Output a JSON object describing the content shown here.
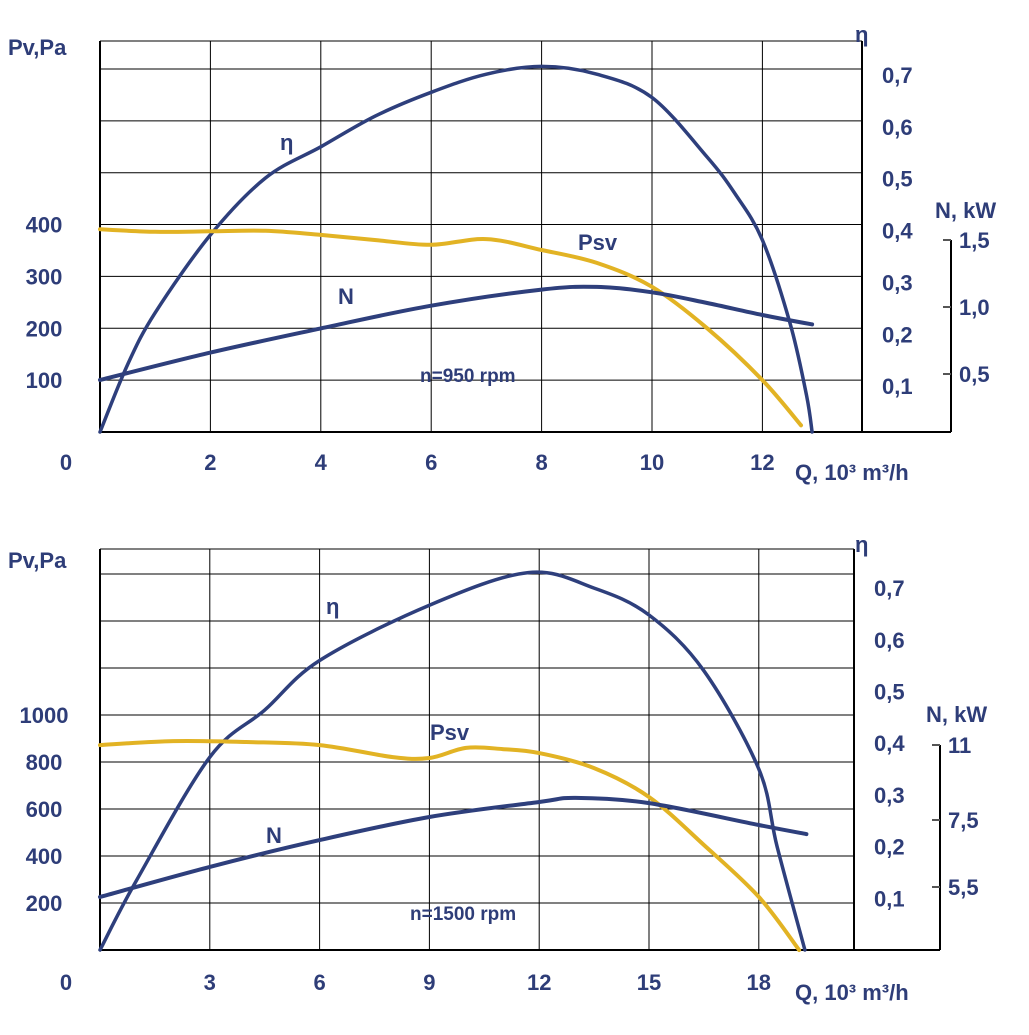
{
  "colors": {
    "navy": "#2e3f7c",
    "yellow": "#e2b324",
    "text": "#2e3d78",
    "grid": "#000000"
  },
  "chart_data": [
    {
      "type": "line",
      "annotation": "n=950 rpm",
      "xlabel": "Q, 10³ m³/h",
      "grid": true,
      "x_ticks": [
        {
          "value": 0,
          "label": "0"
        },
        {
          "value": 2,
          "label": "2"
        },
        {
          "value": 4,
          "label": "4"
        },
        {
          "value": 6,
          "label": "6"
        },
        {
          "value": 8,
          "label": "8"
        },
        {
          "value": 10,
          "label": "10"
        },
        {
          "value": 12,
          "label": "12"
        }
      ],
      "y_left": {
        "label": "Pv,Pa",
        "ticks": [
          {
            "value": 100,
            "label": "100"
          },
          {
            "value": 200,
            "label": "200"
          },
          {
            "value": 300,
            "label": "300"
          },
          {
            "value": 400,
            "label": "400"
          }
        ]
      },
      "y_right": {
        "label": "η",
        "ticks": [
          {
            "value": 0.1,
            "label": "0,1"
          },
          {
            "value": 0.2,
            "label": "0,2"
          },
          {
            "value": 0.3,
            "label": "0,3"
          },
          {
            "value": 0.4,
            "label": "0,4"
          },
          {
            "value": 0.5,
            "label": "0,5"
          },
          {
            "value": 0.6,
            "label": "0,6"
          },
          {
            "value": 0.7,
            "label": "0,7"
          }
        ]
      },
      "y_right2": {
        "label": "N, kW",
        "ticks": [
          {
            "value": 0.5,
            "label": "0,5"
          },
          {
            "value": 1.0,
            "label": "1,0"
          },
          {
            "value": 1.5,
            "label": "1,5"
          }
        ]
      },
      "series": [
        {
          "name": "η",
          "axis": "eta",
          "color": "#2e3f7c",
          "points": [
            [
              0,
              0
            ],
            [
              0.5,
              0.13
            ],
            [
              1,
              0.23
            ],
            [
              2,
              0.38
            ],
            [
              3,
              0.49
            ],
            [
              4,
              0.55
            ],
            [
              5,
              0.61
            ],
            [
              6,
              0.655
            ],
            [
              7,
              0.69
            ],
            [
              8,
              0.705
            ],
            [
              9,
              0.69
            ],
            [
              10,
              0.645
            ],
            [
              11,
              0.53
            ],
            [
              11.5,
              0.46
            ],
            [
              12,
              0.37
            ],
            [
              12.5,
              0.21
            ],
            [
              12.8,
              0.07
            ],
            [
              12.9,
              0
            ]
          ]
        },
        {
          "name": "Psv",
          "axis": "pv",
          "color": "#e2b324",
          "points": [
            [
              0,
              391
            ],
            [
              1,
              386
            ],
            [
              2,
              387
            ],
            [
              3,
              388
            ],
            [
              4,
              380
            ],
            [
              5,
              370
            ],
            [
              6,
              361
            ],
            [
              7,
              372
            ],
            [
              8,
              351
            ],
            [
              9,
              326
            ],
            [
              10,
              280
            ],
            [
              11,
              200
            ],
            [
              12,
              100
            ],
            [
              12.7,
              13
            ]
          ]
        },
        {
          "name": "N",
          "axis": "N",
          "color": "#2e3f7c",
          "points": [
            [
              0,
              0.455
            ],
            [
              2,
              0.66
            ],
            [
              4,
              0.84
            ],
            [
              6,
              1.01
            ],
            [
              8,
              1.13
            ],
            [
              9,
              1.15
            ],
            [
              10,
              1.11
            ],
            [
              11,
              1.03
            ],
            [
              12,
              0.94
            ],
            [
              12.9,
              0.87
            ]
          ]
        }
      ]
    },
    {
      "type": "line",
      "annotation": "n=1500 rpm",
      "xlabel": "Q, 10³ m³/h",
      "grid": true,
      "x_ticks": [
        {
          "value": 0,
          "label": "0"
        },
        {
          "value": 3,
          "label": "3"
        },
        {
          "value": 6,
          "label": "6"
        },
        {
          "value": 9,
          "label": "9"
        },
        {
          "value": 12,
          "label": "12"
        },
        {
          "value": 15,
          "label": "15"
        },
        {
          "value": 18,
          "label": "18"
        }
      ],
      "y_left": {
        "label": "Pv,Pa",
        "ticks": [
          {
            "value": 200,
            "label": "200"
          },
          {
            "value": 400,
            "label": "400"
          },
          {
            "value": 600,
            "label": "600"
          },
          {
            "value": 800,
            "label": "800"
          },
          {
            "value": 1000,
            "label": "1000"
          }
        ]
      },
      "y_right": {
        "label": "η",
        "ticks": [
          {
            "value": 0.1,
            "label": "0,1"
          },
          {
            "value": 0.2,
            "label": "0,2"
          },
          {
            "value": 0.3,
            "label": "0,3"
          },
          {
            "value": 0.4,
            "label": "0,4"
          },
          {
            "value": 0.5,
            "label": "0,5"
          },
          {
            "value": 0.6,
            "label": "0,6"
          },
          {
            "value": 0.7,
            "label": "0,7"
          }
        ]
      },
      "y_right2": {
        "label": "N, kW",
        "ticks": [
          {
            "value": 5.5,
            "label": "5,5"
          },
          {
            "value": 7.5,
            "label": "7,5"
          },
          {
            "value": 11,
            "label": "11"
          }
        ]
      },
      "series": [
        {
          "name": "η",
          "axis": "eta",
          "color": "#2e3f7c",
          "points": [
            [
              0,
              0
            ],
            [
              1,
              0.135
            ],
            [
              3,
              0.373
            ],
            [
              4.5,
              0.464
            ],
            [
              6,
              0.56
            ],
            [
              9,
              0.667
            ],
            [
              11.7,
              0.73
            ],
            [
              13.5,
              0.7
            ],
            [
              15,
              0.648
            ],
            [
              16.5,
              0.54
            ],
            [
              18,
              0.35
            ],
            [
              18.5,
              0.2
            ],
            [
              19.26,
              0
            ]
          ]
        },
        {
          "name": "Psv",
          "axis": "pv",
          "color": "#e2b324",
          "points": [
            [
              0,
              872
            ],
            [
              2,
              889
            ],
            [
              4,
              885
            ],
            [
              6,
              872
            ],
            [
              8,
              821
            ],
            [
              9,
              817
            ],
            [
              10,
              860
            ],
            [
              11,
              855
            ],
            [
              12,
              838
            ],
            [
              13.5,
              774
            ],
            [
              15,
              651
            ],
            [
              16.5,
              447
            ],
            [
              18,
              226
            ],
            [
              19.1,
              0
            ]
          ]
        },
        {
          "name": "N",
          "axis": "N",
          "color": "#2e3f7c",
          "points": [
            [
              0,
              5.11
            ],
            [
              3,
              6.1
            ],
            [
              6,
              6.9
            ],
            [
              9,
              7.64
            ],
            [
              12,
              8.34
            ],
            [
              13,
              8.53
            ],
            [
              15,
              8.29
            ],
            [
              18,
              7.35
            ],
            [
              19.3,
              7.08
            ]
          ]
        }
      ]
    }
  ]
}
